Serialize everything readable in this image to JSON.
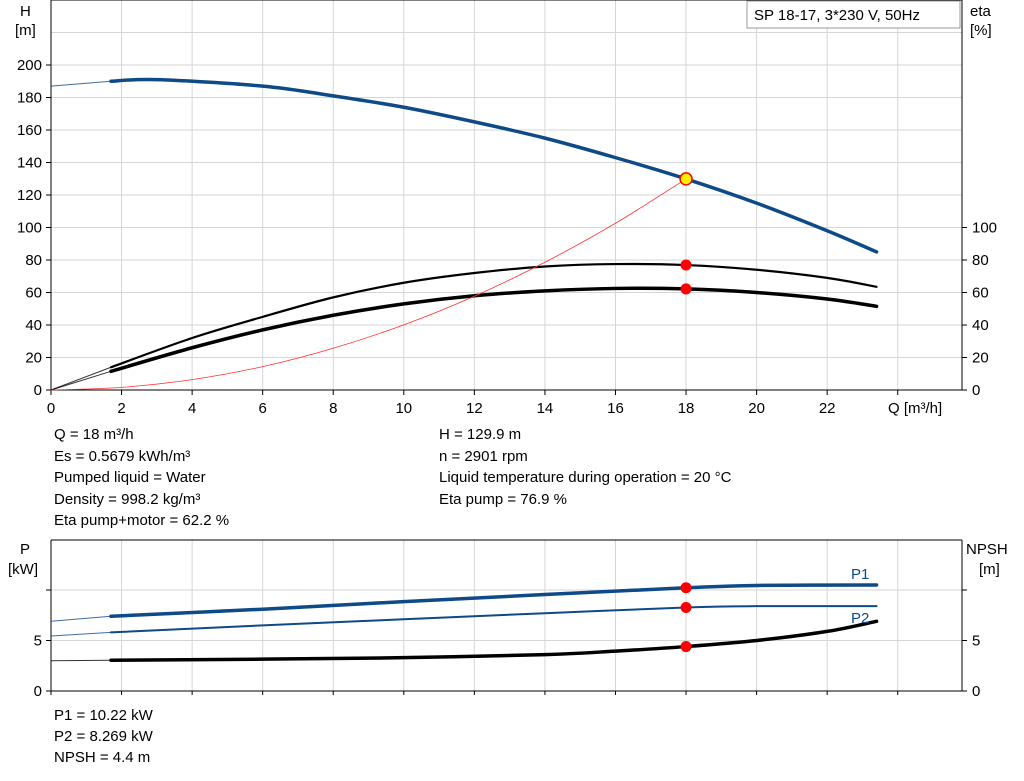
{
  "chart_data": [
    {
      "type": "line",
      "legend_box": "SP 18-17, 3*230 V, 50Hz",
      "xlabel": "Q [m³/h]",
      "ylabel_left": [
        "H",
        "[m]"
      ],
      "ylabel_right": [
        "eta",
        "[%]"
      ],
      "xlim": [
        0,
        26
      ],
      "ylim_left": [
        0,
        240
      ],
      "ylim_right": [
        0,
        240
      ],
      "xticks": [
        "0",
        "2",
        "4",
        "6",
        "8",
        "10",
        "12",
        "14",
        "16",
        "18",
        "20",
        "22"
      ],
      "yticks_left": [
        "0",
        "20",
        "40",
        "60",
        "80",
        "100",
        "120",
        "140",
        "160",
        "180",
        "200"
      ],
      "yticks_right": [
        "0",
        "20",
        "40",
        "60",
        "80",
        "100"
      ],
      "grid": true,
      "colors": {
        "head": "#0d4a86",
        "eta": "#000000",
        "system": "#ff3030",
        "point": "#ff0000",
        "duty_point": "#ffee00"
      },
      "series": [
        {
          "key": "head",
          "color": "#0d4a86",
          "x": [
            1.7,
            3,
            6,
            8,
            10,
            12,
            14,
            16,
            18,
            20,
            22,
            23.4
          ],
          "y": [
            190,
            191,
            187,
            181,
            174,
            165,
            155,
            143,
            129.9,
            115,
            98,
            85
          ],
          "extrapolated": {
            "x": [
              0,
              1.7
            ],
            "y": [
              187,
              190
            ]
          }
        },
        {
          "key": "eta_pump",
          "color": "#000000",
          "x": [
            1.7,
            4,
            6,
            8,
            10,
            12,
            14,
            16,
            18,
            20,
            22,
            23.4
          ],
          "y": [
            14,
            32,
            45,
            57,
            66,
            72,
            76,
            77.5,
            76.9,
            74,
            69,
            63.5
          ],
          "extrapolated": {
            "x": [
              0,
              1.7
            ],
            "y": [
              0,
              14
            ]
          }
        },
        {
          "key": "eta_pump_motor",
          "color": "#000000",
          "x": [
            1.7,
            4,
            6,
            8,
            10,
            12,
            14,
            16,
            18,
            20,
            22,
            23.4
          ],
          "y": [
            11.5,
            26,
            37,
            46,
            53,
            58,
            61,
            62.5,
            62.2,
            60,
            56,
            51.5
          ],
          "extrapolated": {
            "x": [
              0,
              1.7
            ],
            "y": [
              0,
              11.5
            ]
          }
        },
        {
          "key": "system_curve",
          "color": "#ff3030",
          "x": [
            0,
            2,
            4,
            6,
            8,
            10,
            12,
            14,
            16,
            18
          ],
          "y": [
            0,
            1.6,
            6.4,
            14.4,
            25.7,
            40.1,
            57.7,
            78.6,
            102.6,
            129.9
          ]
        }
      ],
      "points": [
        {
          "key": "duty_point",
          "x": 18,
          "y": 129.9
        },
        {
          "key": "eta_pump",
          "x": 18,
          "y": 76.9
        },
        {
          "key": "eta_pump_motor",
          "x": 18,
          "y": 62.2
        }
      ]
    },
    {
      "type": "line",
      "ylabel_left": [
        "P",
        "[kW]"
      ],
      "ylabel_right": [
        "NPSH",
        "[m]"
      ],
      "xlim": [
        0,
        26
      ],
      "ylim_left": [
        0,
        15
      ],
      "ylim_right": [
        0,
        15
      ],
      "yticks_left": [
        "0",
        "5",
        ""
      ],
      "yticks_right": [
        "0",
        "5",
        ""
      ],
      "grid": true,
      "series": [
        {
          "key": "P1",
          "name": "P1",
          "color": "#0d4a86",
          "x": [
            1.7,
            6,
            10,
            14,
            18,
            20,
            23.4
          ],
          "y": [
            7.4,
            8.1,
            8.85,
            9.55,
            10.22,
            10.45,
            10.5
          ],
          "extrapolated": {
            "x": [
              0,
              1.7
            ],
            "y": [
              6.9,
              7.4
            ]
          }
        },
        {
          "key": "P2",
          "name": "P2",
          "color": "#0d4a86",
          "x": [
            1.7,
            6,
            10,
            14,
            18,
            20,
            23.4
          ],
          "y": [
            5.8,
            6.5,
            7.1,
            7.7,
            8.269,
            8.4,
            8.4
          ],
          "extrapolated": {
            "x": [
              0,
              1.7
            ],
            "y": [
              5.45,
              5.8
            ]
          }
        },
        {
          "key": "NPSH",
          "color": "#000000",
          "x": [
            1.7,
            6,
            10,
            14,
            16,
            18,
            20,
            22,
            23.4
          ],
          "y": [
            3.05,
            3.15,
            3.3,
            3.6,
            3.95,
            4.4,
            5.0,
            5.9,
            6.9
          ],
          "extrapolated": {
            "x": [
              0,
              1.7
            ],
            "y": [
              3.0,
              3.05
            ]
          }
        }
      ],
      "points": [
        {
          "key": "P1",
          "x": 18,
          "y": 10.22
        },
        {
          "key": "P2",
          "x": 18,
          "y": 8.269
        },
        {
          "key": "NPSH",
          "x": 18,
          "y": 4.4
        }
      ]
    }
  ],
  "results_top": {
    "left": [
      "Q = 18 m³/h",
      "Es = 0.5679 kWh/m³",
      "Pumped liquid = Water",
      "Density = 998.2 kg/m³",
      "Eta pump+motor = 62.2 %"
    ],
    "right": [
      "H = 129.9 m",
      "n = 2901 rpm",
      "Liquid temperature during operation = 20 °C",
      "Eta pump = 76.9 %"
    ]
  },
  "results_bottom": [
    "P1 = 10.22 kW",
    "P2 = 8.269 kW",
    "NPSH = 4.4 m"
  ]
}
